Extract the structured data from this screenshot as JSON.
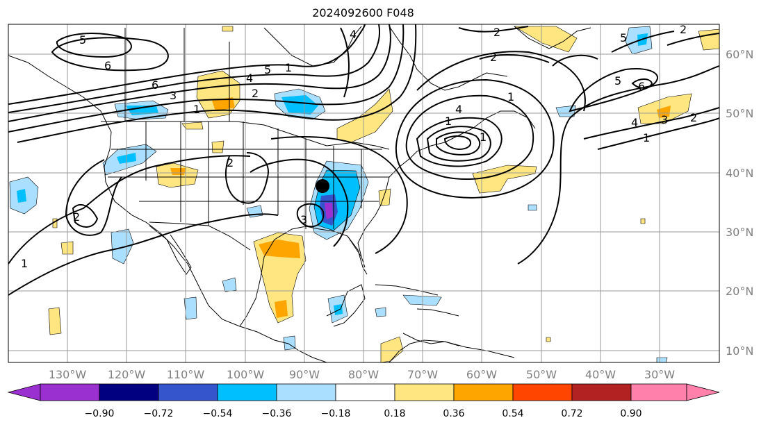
{
  "title": "2024092600 F048",
  "lon_labels": [
    "130°W",
    "120°W",
    "110°W",
    "100°W",
    "90°W",
    "80°W",
    "70°W",
    "60°W",
    "50°W",
    "40°W",
    "30°W"
  ],
  "lat_labels": [
    "60°N",
    "50°N",
    "40°N",
    "30°N",
    "20°N",
    "10°N"
  ],
  "colorbar": {
    "ticks": [
      "−0.90",
      "−0.72",
      "−0.54",
      "−0.36",
      "−0.18",
      "0.18",
      "0.36",
      "0.54",
      "0.72",
      "0.90"
    ],
    "colors": [
      "#9b30d0",
      "#000080",
      "#3555cc",
      "#00bfff",
      "#aadfff",
      "#ffffff",
      "#ffe680",
      "#ffa500",
      "#ff4500",
      "#b22222",
      "#ff80aa"
    ]
  },
  "contour_labels": [
    {
      "text": "5"
    },
    {
      "text": "6"
    },
    {
      "text": "6"
    },
    {
      "text": "3"
    },
    {
      "text": "1"
    },
    {
      "text": "4"
    },
    {
      "text": "5"
    },
    {
      "text": "2"
    },
    {
      "text": "1"
    },
    {
      "text": "2"
    },
    {
      "text": "2"
    },
    {
      "text": "1"
    },
    {
      "text": "4"
    },
    {
      "text": "2"
    },
    {
      "text": "5"
    },
    {
      "text": "5"
    },
    {
      "text": "6"
    },
    {
      "text": "4"
    },
    {
      "text": "3"
    },
    {
      "text": "2"
    },
    {
      "text": "1"
    },
    {
      "text": "2"
    },
    {
      "text": "1"
    },
    {
      "text": "1"
    },
    {
      "text": "3"
    },
    {
      "text": "1"
    },
    {
      "text": "4"
    },
    {
      "text": "2"
    }
  ],
  "marker": {
    "name": "storm-center-dot",
    "color": "#000000"
  }
}
